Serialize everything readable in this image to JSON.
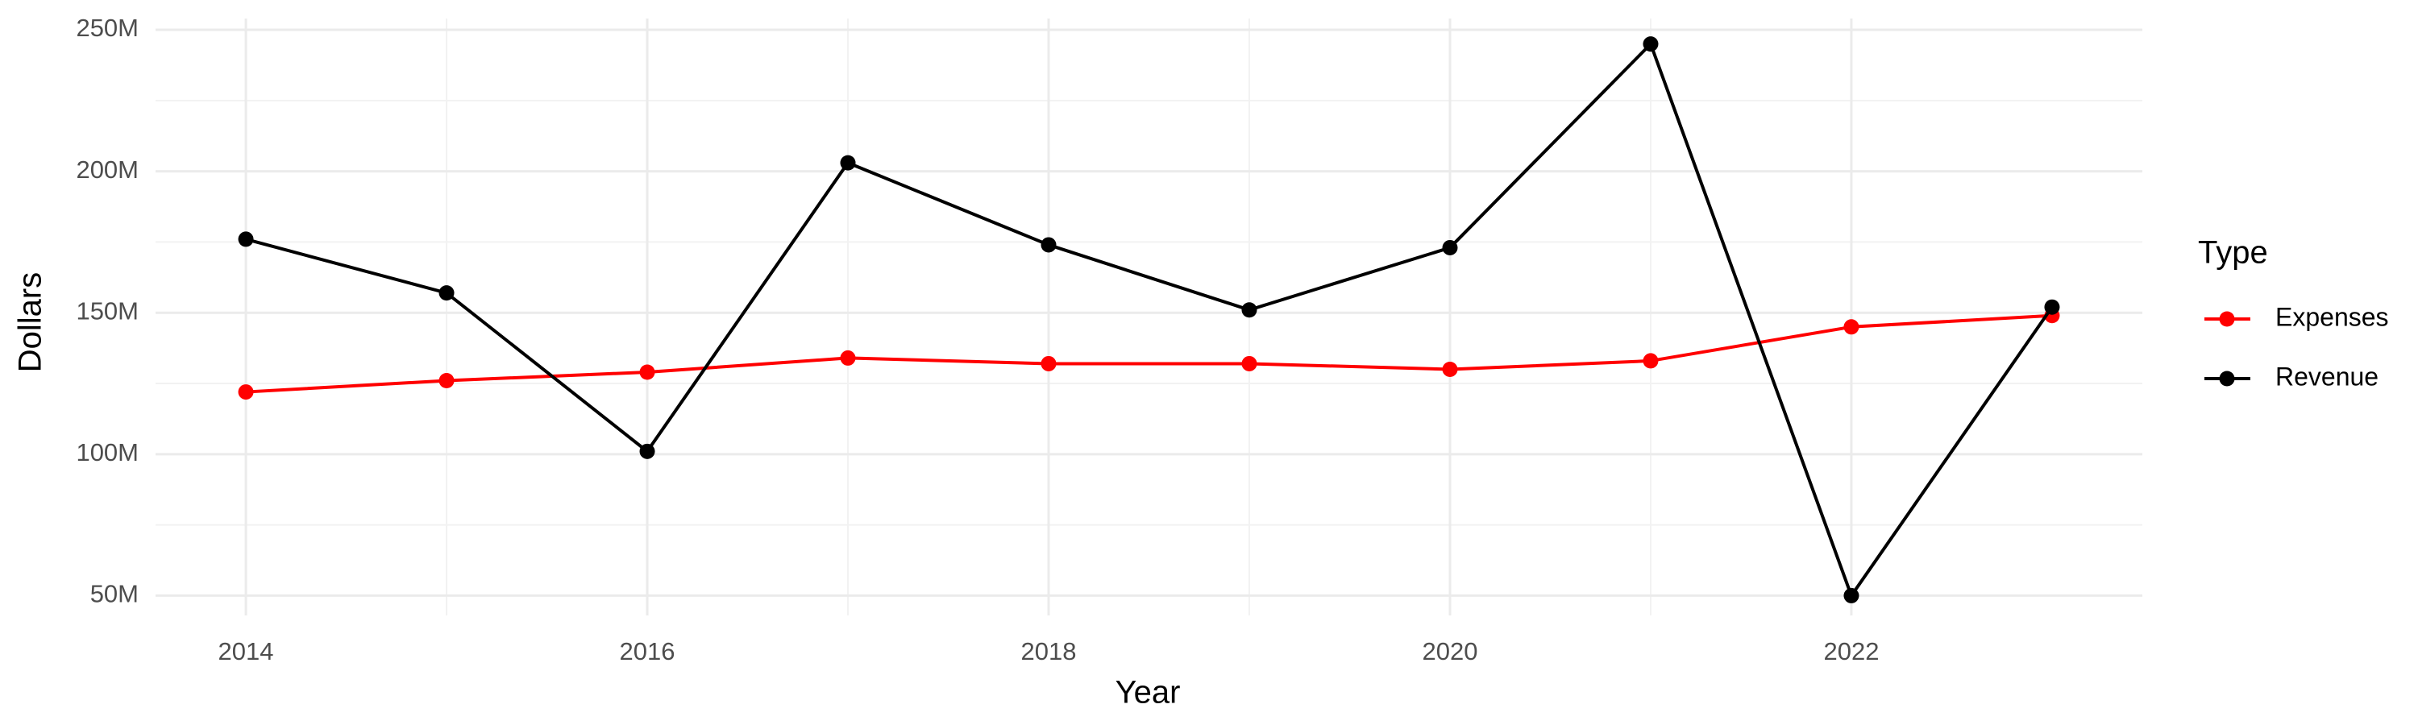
{
  "chart_data": {
    "type": "line",
    "x_label": "Year",
    "y_label": "Dollars",
    "legend_title": "Type",
    "x": [
      2014,
      2015,
      2016,
      2017,
      2018,
      2019,
      2020,
      2021,
      2022,
      2023
    ],
    "series": [
      {
        "name": "Expenses",
        "color": "#ff0000",
        "values": [
          122000000,
          126000000,
          129000000,
          134000000,
          132000000,
          132000000,
          130000000,
          133000000,
          145000000,
          149000000
        ]
      },
      {
        "name": "Revenue",
        "color": "#000000",
        "values": [
          176000000,
          157000000,
          101000000,
          203000000,
          174000000,
          151000000,
          173000000,
          245000000,
          50000000,
          152000000
        ]
      }
    ],
    "xlim": [
      2013.55,
      2023.45
    ],
    "xticks": [
      2014,
      2016,
      2018,
      2020,
      2022
    ],
    "ylim": [
      43000000,
      254000000
    ],
    "yticks": [
      {
        "value": 50000000,
        "label": "50M"
      },
      {
        "value": 100000000,
        "label": "100M"
      },
      {
        "value": 150000000,
        "label": "150M"
      },
      {
        "value": 200000000,
        "label": "200M"
      },
      {
        "value": 250000000,
        "label": "250M"
      }
    ],
    "grid": true,
    "legend": "right"
  }
}
